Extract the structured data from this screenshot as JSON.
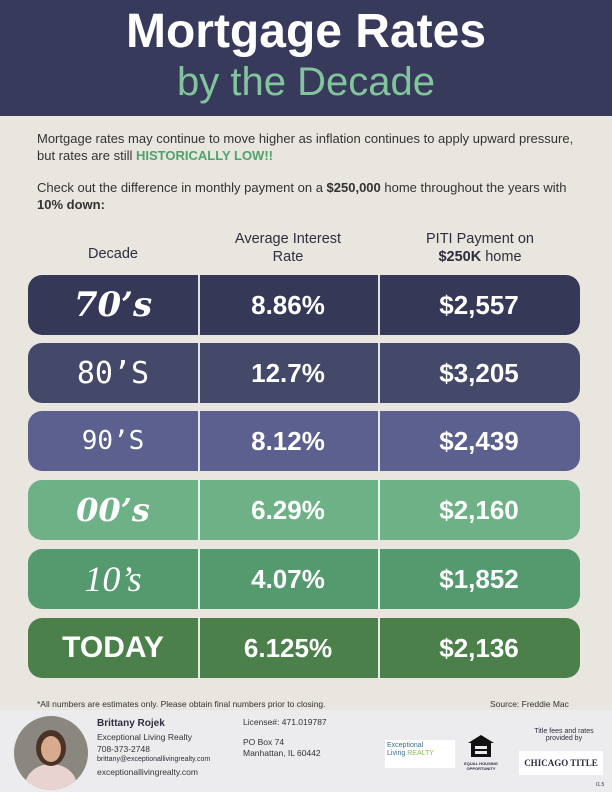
{
  "header": {
    "title": "Mortgage Rates",
    "subtitle": "by the Decade"
  },
  "intro": {
    "p1": [
      "Mortgage rates may continue to move higher as inflation continues to apply upward pressure, but rates are still ",
      "HISTORICALLY LOW!!"
    ],
    "p2": [
      "Check out the difference in monthly payment on a ",
      "$250,000",
      " home throughout the years with ",
      "10% down:"
    ]
  },
  "table": {
    "headers": [
      "Decade",
      "Average Interest Rate",
      [
        "PITI Payment on",
        "$250K",
        " home"
      ]
    ],
    "rows": [
      [
        "70’s",
        "8.86%",
        "$2,557"
      ],
      [
        "80’S",
        "12.7%",
        "$3,205"
      ],
      [
        "90’S",
        "8.12%",
        "$2,439"
      ],
      [
        "00’s",
        "6.29%",
        "$2,160"
      ],
      [
        "10’s",
        "4.07%",
        "$1,852"
      ],
      [
        "TODAY",
        "6.125%",
        "$2,136"
      ]
    ]
  },
  "footnote": "*All numbers are estimates only. Please obtain final numbers prior to closing.",
  "source": "Source: Freddie Mac",
  "footer": {
    "agent": {
      "name": "Brittany Rojek",
      "company": "Exceptional Living Realty",
      "phone": "708-373-2748",
      "email": "brittany@exceptionallivingrealty.com",
      "website": "exceptionallivingrealty.com"
    },
    "license": "License#: 471.019787",
    "address": [
      "PO Box 74",
      "Manhattan, IL 60442"
    ],
    "logo": [
      "Exceptional",
      "Living",
      "REALTY"
    ],
    "equal_housing": "EQUAL HOUSING OPPORTUNITY",
    "title_note": "Title fees and rates provided by",
    "title_company": "CHICAGO TITLE",
    "code": "I1.5"
  }
}
